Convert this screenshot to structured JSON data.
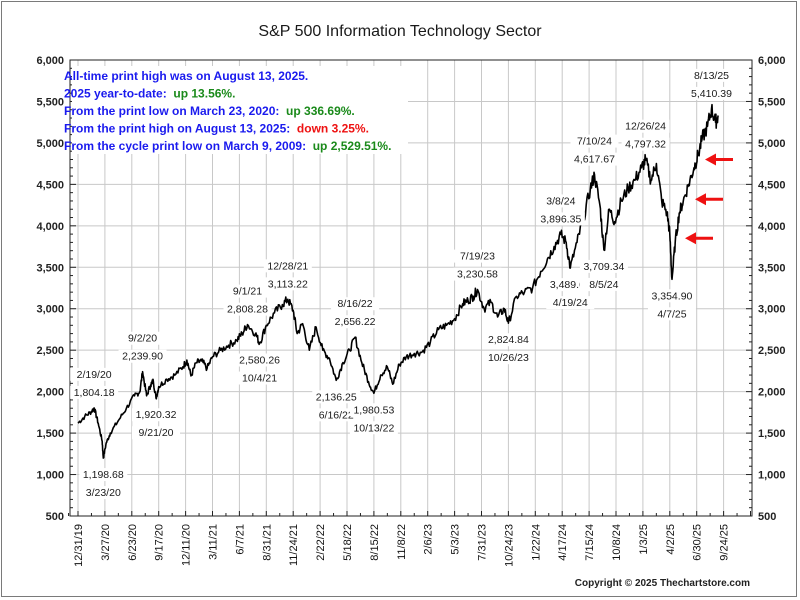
{
  "chart_data": {
    "type": "line",
    "title": "S&P 500 Information Technology Sector",
    "xlabel": "",
    "ylabel": "",
    "ylim": [
      500,
      6000
    ],
    "y_ticks": [
      6000,
      5500,
      5000,
      4500,
      4000,
      3500,
      3000,
      2500,
      2000,
      1500,
      1000,
      500
    ],
    "y_tick_labels": [
      "6,000",
      "5,500",
      "5,000",
      "4,500",
      "4,000",
      "3,500",
      "3,000",
      "2,500",
      "2,000",
      "1,500",
      "1,000",
      "500"
    ],
    "x_tick_labels": [
      "12/31/19",
      "3/27/20",
      "6/23/20",
      "9/17/20",
      "12/11/20",
      "3/11/21",
      "6/7/21",
      "8/31/21",
      "11/24/21",
      "2/22/22",
      "5/18/22",
      "8/15/22",
      "11/8/22",
      "2/6/23",
      "5/3/23",
      "7/31/23",
      "10/24/23",
      "1/22/24",
      "4/17/24",
      "7/15/24",
      "10/8/24",
      "1/3/25",
      "4/2/25",
      "6/30/25",
      "9/24/25"
    ],
    "grid": true,
    "axes": "left-and-right",
    "series": [
      {
        "name": "S&P 500 Information Technology Sector",
        "color": "#000000",
        "points": [
          {
            "x": 0.0,
            "y": 1620
          },
          {
            "x": 0.25,
            "y": 1700
          },
          {
            "x": 0.5,
            "y": 1760
          },
          {
            "x": 0.6,
            "y": 1804.18
          },
          {
            "x": 0.75,
            "y": 1620
          },
          {
            "x": 0.9,
            "y": 1400
          },
          {
            "x": 0.94,
            "y": 1198.68
          },
          {
            "x": 1.05,
            "y": 1380
          },
          {
            "x": 1.2,
            "y": 1500
          },
          {
            "x": 1.5,
            "y": 1650
          },
          {
            "x": 1.8,
            "y": 1800
          },
          {
            "x": 2.1,
            "y": 1950
          },
          {
            "x": 2.3,
            "y": 2000
          },
          {
            "x": 2.4,
            "y": 2239.9
          },
          {
            "x": 2.55,
            "y": 1950
          },
          {
            "x": 2.7,
            "y": 2080
          },
          {
            "x": 2.8,
            "y": 2130
          },
          {
            "x": 2.9,
            "y": 1920.32
          },
          {
            "x": 3.0,
            "y": 2060
          },
          {
            "x": 3.3,
            "y": 2150
          },
          {
            "x": 3.6,
            "y": 2200
          },
          {
            "x": 3.9,
            "y": 2300
          },
          {
            "x": 4.05,
            "y": 2380
          },
          {
            "x": 4.2,
            "y": 2190
          },
          {
            "x": 4.4,
            "y": 2350
          },
          {
            "x": 4.6,
            "y": 2370
          },
          {
            "x": 4.8,
            "y": 2280
          },
          {
            "x": 5.0,
            "y": 2420
          },
          {
            "x": 5.3,
            "y": 2500
          },
          {
            "x": 5.6,
            "y": 2560
          },
          {
            "x": 5.9,
            "y": 2620
          },
          {
            "x": 6.1,
            "y": 2700
          },
          {
            "x": 6.3,
            "y": 2808.28
          },
          {
            "x": 6.6,
            "y": 2700
          },
          {
            "x": 6.75,
            "y": 2580.26
          },
          {
            "x": 7.0,
            "y": 2800
          },
          {
            "x": 7.3,
            "y": 2950
          },
          {
            "x": 7.6,
            "y": 3050
          },
          {
            "x": 7.8,
            "y": 3113.22
          },
          {
            "x": 8.0,
            "y": 2980
          },
          {
            "x": 8.15,
            "y": 2700
          },
          {
            "x": 8.35,
            "y": 2820
          },
          {
            "x": 8.6,
            "y": 2500
          },
          {
            "x": 8.85,
            "y": 2780
          },
          {
            "x": 9.1,
            "y": 2500
          },
          {
            "x": 9.35,
            "y": 2400
          },
          {
            "x": 9.6,
            "y": 2136.25
          },
          {
            "x": 9.85,
            "y": 2350
          },
          {
            "x": 10.1,
            "y": 2500
          },
          {
            "x": 10.3,
            "y": 2656.22
          },
          {
            "x": 10.55,
            "y": 2350
          },
          {
            "x": 10.8,
            "y": 2120
          },
          {
            "x": 11.0,
            "y": 1980.53
          },
          {
            "x": 11.25,
            "y": 2200
          },
          {
            "x": 11.5,
            "y": 2300
          },
          {
            "x": 11.7,
            "y": 2090
          },
          {
            "x": 11.95,
            "y": 2330
          },
          {
            "x": 12.2,
            "y": 2420
          },
          {
            "x": 12.5,
            "y": 2460
          },
          {
            "x": 12.8,
            "y": 2480
          },
          {
            "x": 13.1,
            "y": 2600
          },
          {
            "x": 13.4,
            "y": 2750
          },
          {
            "x": 13.7,
            "y": 2800
          },
          {
            "x": 14.0,
            "y": 2880
          },
          {
            "x": 14.3,
            "y": 3060
          },
          {
            "x": 14.5,
            "y": 3100
          },
          {
            "x": 14.7,
            "y": 3150
          },
          {
            "x": 14.85,
            "y": 3230.58
          },
          {
            "x": 15.1,
            "y": 3000
          },
          {
            "x": 15.35,
            "y": 3080
          },
          {
            "x": 15.6,
            "y": 2900
          },
          {
            "x": 15.85,
            "y": 3000
          },
          {
            "x": 16.0,
            "y": 2824.84
          },
          {
            "x": 16.3,
            "y": 3150
          },
          {
            "x": 16.6,
            "y": 3200
          },
          {
            "x": 16.9,
            "y": 3250
          },
          {
            "x": 17.2,
            "y": 3450
          },
          {
            "x": 17.45,
            "y": 3600
          },
          {
            "x": 17.7,
            "y": 3750
          },
          {
            "x": 17.95,
            "y": 3896.35
          },
          {
            "x": 18.15,
            "y": 3800
          },
          {
            "x": 18.3,
            "y": 3489.68
          },
          {
            "x": 18.55,
            "y": 3800
          },
          {
            "x": 18.8,
            "y": 4100
          },
          {
            "x": 19.05,
            "y": 4450
          },
          {
            "x": 19.2,
            "y": 4617.67
          },
          {
            "x": 19.4,
            "y": 4250
          },
          {
            "x": 19.55,
            "y": 3709.34
          },
          {
            "x": 19.75,
            "y": 4200
          },
          {
            "x": 19.95,
            "y": 4050
          },
          {
            "x": 20.2,
            "y": 4300
          },
          {
            "x": 20.45,
            "y": 4450
          },
          {
            "x": 20.7,
            "y": 4550
          },
          {
            "x": 20.95,
            "y": 4700
          },
          {
            "x": 21.1,
            "y": 4797.32
          },
          {
            "x": 21.3,
            "y": 4550
          },
          {
            "x": 21.5,
            "y": 4750
          },
          {
            "x": 21.7,
            "y": 4300
          },
          {
            "x": 21.9,
            "y": 4150
          },
          {
            "x": 22.0,
            "y": 3900
          },
          {
            "x": 22.08,
            "y": 3354.9
          },
          {
            "x": 22.2,
            "y": 3800
          },
          {
            "x": 22.35,
            "y": 4150
          },
          {
            "x": 22.5,
            "y": 4300
          },
          {
            "x": 22.7,
            "y": 4500
          },
          {
            "x": 22.9,
            "y": 4700
          },
          {
            "x": 23.05,
            "y": 4850
          },
          {
            "x": 23.2,
            "y": 5050
          },
          {
            "x": 23.4,
            "y": 5200
          },
          {
            "x": 23.55,
            "y": 5410.39
          },
          {
            "x": 23.7,
            "y": 5250
          },
          {
            "x": 23.8,
            "y": 5330
          }
        ]
      }
    ],
    "annotations": [
      {
        "date": "2/19/20",
        "value": "1,804.18",
        "x": 0.6,
        "y": 1804.18,
        "pos": "above"
      },
      {
        "date": "3/23/20",
        "value": "1,198.68",
        "x": 0.94,
        "y": 1198.68,
        "pos": "below"
      },
      {
        "date": "9/2/20",
        "value": "2,239.90",
        "x": 2.4,
        "y": 2239.9,
        "pos": "above"
      },
      {
        "date": "9/21/20",
        "value": "1,920.32",
        "x": 2.9,
        "y": 1920.32,
        "pos": "below"
      },
      {
        "date": "9/1/21",
        "value": "2,808.28",
        "x": 6.3,
        "y": 2808.28,
        "pos": "above"
      },
      {
        "date": "10/4/21",
        "value": "2,580.26",
        "x": 6.75,
        "y": 2580.26,
        "pos": "below"
      },
      {
        "date": "12/28/21",
        "value": "3,113.22",
        "x": 7.8,
        "y": 3113.22,
        "pos": "above"
      },
      {
        "date": "6/16/22",
        "value": "2,136.25",
        "x": 9.6,
        "y": 2136.25,
        "pos": "below"
      },
      {
        "date": "8/16/22",
        "value": "2,656.22",
        "x": 10.3,
        "y": 2656.22,
        "pos": "above"
      },
      {
        "date": "10/13/22",
        "value": "1,980.53",
        "x": 11.0,
        "y": 1980.53,
        "pos": "below"
      },
      {
        "date": "7/19/23",
        "value": "3,230.58",
        "x": 14.85,
        "y": 3230.58,
        "pos": "above"
      },
      {
        "date": "10/26/23",
        "value": "2,824.84",
        "x": 16.0,
        "y": 2824.84,
        "pos": "below"
      },
      {
        "date": "3/8/24",
        "value": "3,896.35",
        "x": 17.95,
        "y": 3896.35,
        "pos": "above"
      },
      {
        "date": "4/19/24",
        "value": "3,489.68",
        "x": 18.3,
        "y": 3489.68,
        "pos": "below"
      },
      {
        "date": "7/10/24",
        "value": "4,617.67",
        "x": 19.2,
        "y": 4617.67,
        "pos": "above"
      },
      {
        "date": "8/5/24",
        "value": "3,709.34",
        "x": 19.55,
        "y": 3709.34,
        "pos": "below"
      },
      {
        "date": "12/26/24",
        "value": "4,797.32",
        "x": 21.1,
        "y": 4797.32,
        "pos": "above"
      },
      {
        "date": "4/7/25",
        "value": "3,354.90",
        "x": 22.08,
        "y": 3354.9,
        "pos": "below"
      },
      {
        "date": "8/13/25",
        "value": "5,410.39",
        "x": 23.55,
        "y": 5410.39,
        "pos": "above"
      }
    ],
    "arrows": [
      {
        "y": 4800,
        "color": "#ee1111"
      },
      {
        "y": 4320,
        "color": "#ee1111"
      },
      {
        "y": 3850,
        "color": "#ee1111"
      }
    ]
  },
  "info_lines": [
    {
      "label": "All-time print high was on August 13, 2025.",
      "value": "",
      "value_color": ""
    },
    {
      "label": "2025 year-to-date:",
      "value": "up 13.56%.",
      "value_color": "#1a8a1a"
    },
    {
      "label": "From the print low on March 23, 2020:",
      "value": "up 336.69%.",
      "value_color": "#1a8a1a"
    },
    {
      "label": "From the print high on August 13, 2025:",
      "value": "down 3.25%.",
      "value_color": "#ee1111"
    },
    {
      "label": "From the cycle print low on March 9, 2009:",
      "value": "up 2,529.51%.",
      "value_color": "#1a8a1a"
    }
  ],
  "colors": {
    "info_label": "#1a1aee",
    "grid": "#c8c8c8"
  },
  "copyright": "Copyright © 2025 Thechartstore.com"
}
